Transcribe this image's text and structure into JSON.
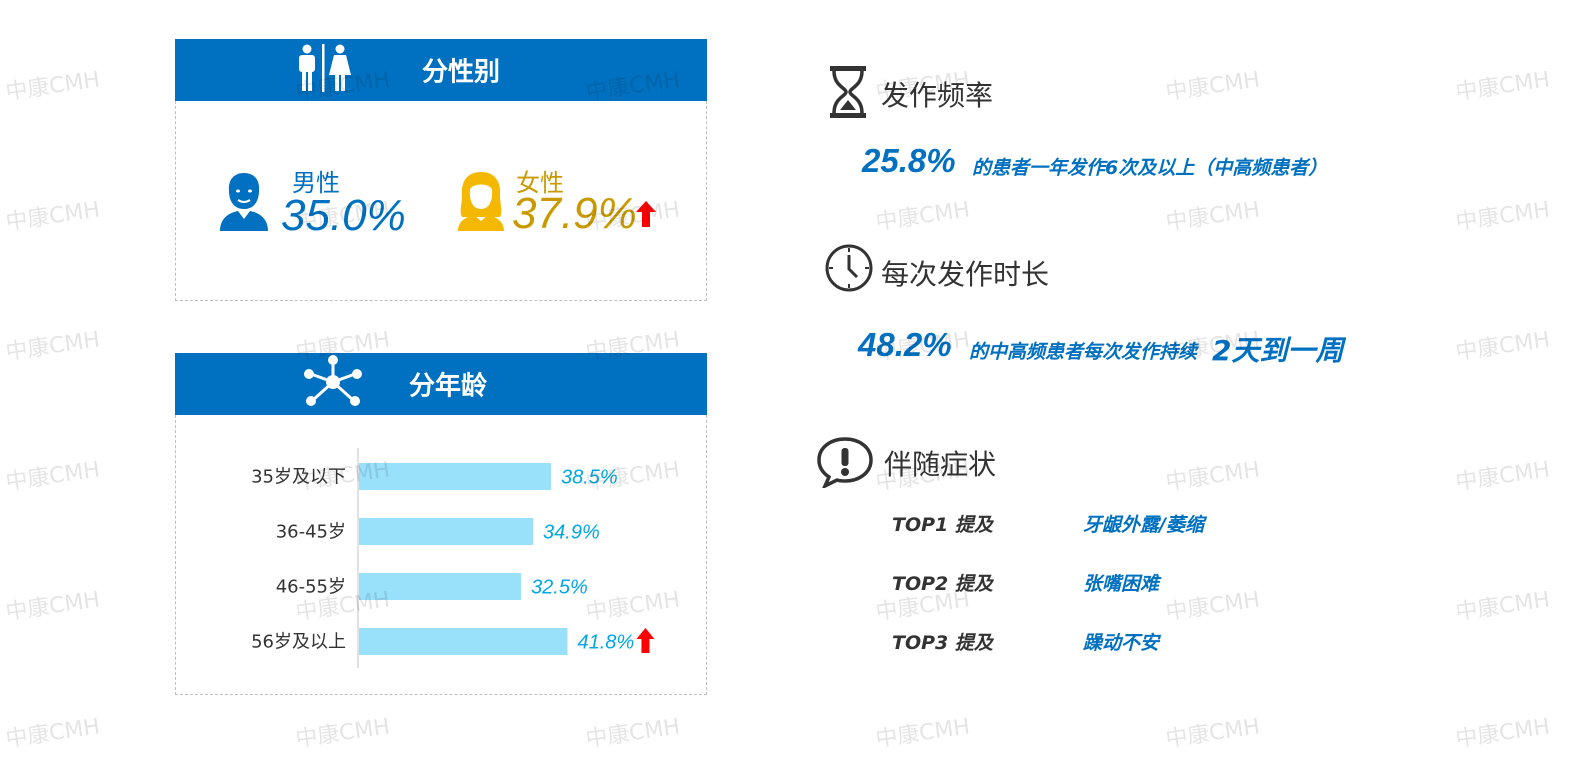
{
  "gender": {
    "header_title": "分性别",
    "male_label": "男性",
    "male_value": "35.0%",
    "female_label": "女性",
    "female_value": "37.9%",
    "colors": {
      "male": "#0070c0",
      "female": "#c99a00",
      "arrow": "#ff0000"
    }
  },
  "age": {
    "header_title": "分年龄"
  },
  "chart_data": {
    "type": "bar",
    "orientation": "horizontal",
    "categories": [
      "35岁及以下",
      "36-45岁",
      "46-55岁",
      "56岁及以上"
    ],
    "values": [
      38.5,
      34.9,
      32.5,
      41.8
    ],
    "value_labels": [
      "38.5%",
      "34.9%",
      "32.5%",
      "41.8%"
    ],
    "highlight_up_arrow": [
      false,
      false,
      false,
      true
    ],
    "bar_color": "#99e0fb",
    "label_color": "#00a7e6",
    "grid": false
  },
  "frequency": {
    "title": "发作频率",
    "pct": "25.8%",
    "text": "的患者一年发作6次及以上（中高频患者）"
  },
  "duration": {
    "title": "每次发作时长",
    "pct": "48.2%",
    "text": "的中高频患者每次发作持续",
    "emphasis": "2天到一周"
  },
  "symptoms": {
    "title": "伴随症状",
    "items": [
      {
        "rank": "TOP1 提及",
        "symptom": "牙龈外露/萎缩"
      },
      {
        "rank": "TOP2 提及",
        "symptom": "张嘴困难"
      },
      {
        "rank": "TOP3 提及",
        "symptom": "躁动不安"
      }
    ]
  },
  "watermark": "中康CMH"
}
